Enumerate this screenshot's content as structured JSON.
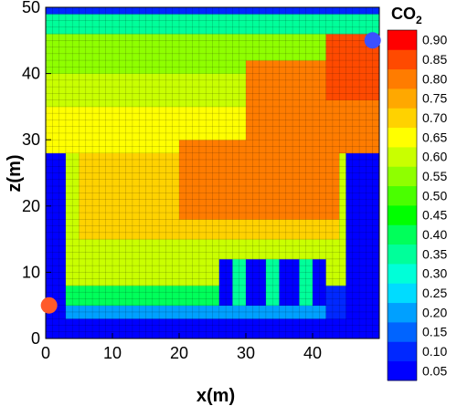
{
  "chart_data": {
    "type": "heatmap",
    "title": "",
    "xlabel": "x(m)",
    "ylabel": "z(m)",
    "xlim": [
      0,
      50
    ],
    "ylim": [
      0,
      50
    ],
    "x_ticks": [
      0,
      10,
      20,
      30,
      40
    ],
    "y_ticks": [
      0,
      10,
      20,
      30,
      40,
      50
    ],
    "grid": true,
    "grid_resolution": 1,
    "legend": {
      "title_main": "CO",
      "title_subscript": "2",
      "placement": "right",
      "levels": [
        "0.05",
        "0.10",
        "0.15",
        "0.20",
        "0.25",
        "0.30",
        "0.35",
        "0.40",
        "0.45",
        "0.50",
        "0.55",
        "0.60",
        "0.65",
        "0.70",
        "0.75",
        "0.80",
        "0.85",
        "0.90"
      ],
      "colors": [
        "#0000ff",
        "#0028ff",
        "#0064ff",
        "#00a0ff",
        "#00dcff",
        "#00ffd8",
        "#00ff9a",
        "#00ff5a",
        "#00ff00",
        "#4aff00",
        "#8fff00",
        "#c9ff00",
        "#ffff00",
        "#ffd200",
        "#ffa800",
        "#ff7c00",
        "#ff4a00",
        "#ff0000"
      ]
    },
    "markers": [
      {
        "x": 0.5,
        "z": 5,
        "color": "#ff5a2a"
      },
      {
        "x": 49,
        "z": 45,
        "color": "#3c50ff"
      }
    ],
    "regions": [
      {
        "x": [
          0,
          50
        ],
        "z": [
          0,
          50
        ],
        "value": 0.05
      },
      {
        "x": [
          0,
          50
        ],
        "z": [
          45,
          50
        ],
        "value": 0.35
      },
      {
        "x": [
          0,
          50
        ],
        "z": [
          40,
          46
        ],
        "value": 0.55
      },
      {
        "x": [
          0,
          50
        ],
        "z": [
          35,
          40
        ],
        "value": 0.6
      },
      {
        "x": [
          0,
          50
        ],
        "z": [
          28,
          35
        ],
        "value": 0.63
      },
      {
        "x": [
          3,
          45
        ],
        "z": [
          5,
          28
        ],
        "value": 0.6
      },
      {
        "x": [
          5,
          44
        ],
        "z": [
          15,
          28
        ],
        "value": 0.7
      },
      {
        "x": [
          20,
          44
        ],
        "z": [
          18,
          30
        ],
        "value": 0.78
      },
      {
        "x": [
          30,
          50
        ],
        "z": [
          30,
          42
        ],
        "value": 0.78
      },
      {
        "x": [
          42,
          50
        ],
        "z": [
          36,
          46
        ],
        "value": 0.86
      },
      {
        "x": [
          44,
          50
        ],
        "z": [
          28,
          36
        ],
        "value": 0.82
      },
      {
        "x": [
          3,
          45
        ],
        "z": [
          5,
          8
        ],
        "value": 0.4
      },
      {
        "x": [
          3,
          45
        ],
        "z": [
          3,
          5
        ],
        "value": 0.2
      },
      {
        "x": [
          0,
          3
        ],
        "z": [
          3,
          28
        ],
        "value": 0.05
      },
      {
        "x": [
          45,
          50
        ],
        "z": [
          0,
          26
        ],
        "value": 0.05
      },
      {
        "x": [
          26,
          28
        ],
        "z": [
          5,
          12
        ],
        "value": 0.05
      },
      {
        "x": [
          30,
          33
        ],
        "z": [
          5,
          12
        ],
        "value": 0.05
      },
      {
        "x": [
          35,
          38
        ],
        "z": [
          5,
          12
        ],
        "value": 0.05
      },
      {
        "x": [
          40,
          42
        ],
        "z": [
          5,
          12
        ],
        "value": 0.05
      },
      {
        "x": [
          42,
          45
        ],
        "z": [
          3,
          8
        ],
        "value": 0.08
      },
      {
        "x": [
          28,
          30
        ],
        "z": [
          5,
          12
        ],
        "value": 0.35
      },
      {
        "x": [
          33,
          35
        ],
        "z": [
          5,
          12
        ],
        "value": 0.35
      },
      {
        "x": [
          38,
          40
        ],
        "z": [
          5,
          12
        ],
        "value": 0.35
      },
      {
        "x": [
          0,
          50
        ],
        "z": [
          0,
          3
        ],
        "value": 0.05
      },
      {
        "x": [
          0,
          50
        ],
        "z": [
          49,
          50
        ],
        "value": 0.1
      }
    ]
  }
}
